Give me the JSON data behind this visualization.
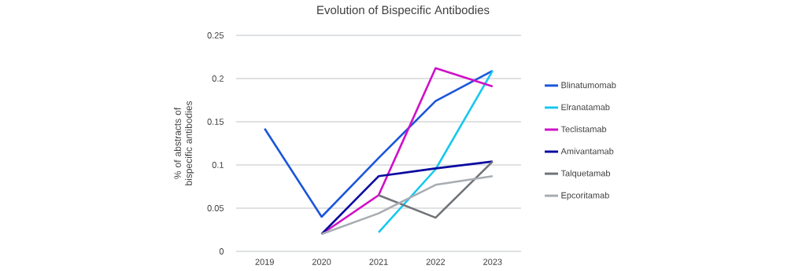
{
  "chart_data": {
    "type": "line",
    "title": "Evolution of Bispecific Antibodies",
    "ylabel": "% of abstracts of bispecific antibodies",
    "categories": [
      "2019",
      "2020",
      "2021",
      "2022",
      "2023"
    ],
    "series": [
      {
        "name": "Blinatumomab",
        "color": "#1a56db",
        "values": [
          0.142,
          0.04,
          0.108,
          0.174,
          0.209
        ]
      },
      {
        "name": "Elranatamab",
        "color": "#17c8f0",
        "values": [
          null,
          null,
          0.022,
          0.095,
          0.209
        ]
      },
      {
        "name": "Teclistamab",
        "color": "#d010c8",
        "values": [
          null,
          0.02,
          0.065,
          0.212,
          0.191
        ]
      },
      {
        "name": "Amivantamab",
        "color": "#0a0aa0",
        "values": [
          null,
          0.02,
          0.087,
          0.096,
          0.104
        ]
      },
      {
        "name": "Talquetamab",
        "color": "#707478",
        "values": [
          null,
          null,
          0.065,
          0.039,
          0.104
        ]
      },
      {
        "name": "Epcoritamab",
        "color": "#a8adb3",
        "values": [
          null,
          0.02,
          0.044,
          0.077,
          0.087
        ]
      }
    ],
    "ylim": [
      0,
      0.25
    ],
    "yticks": [
      0,
      0.05,
      0.1,
      0.15,
      0.2,
      0.25
    ],
    "grid": "y",
    "legend": "right",
    "marker": "none",
    "line_style": "solid"
  }
}
